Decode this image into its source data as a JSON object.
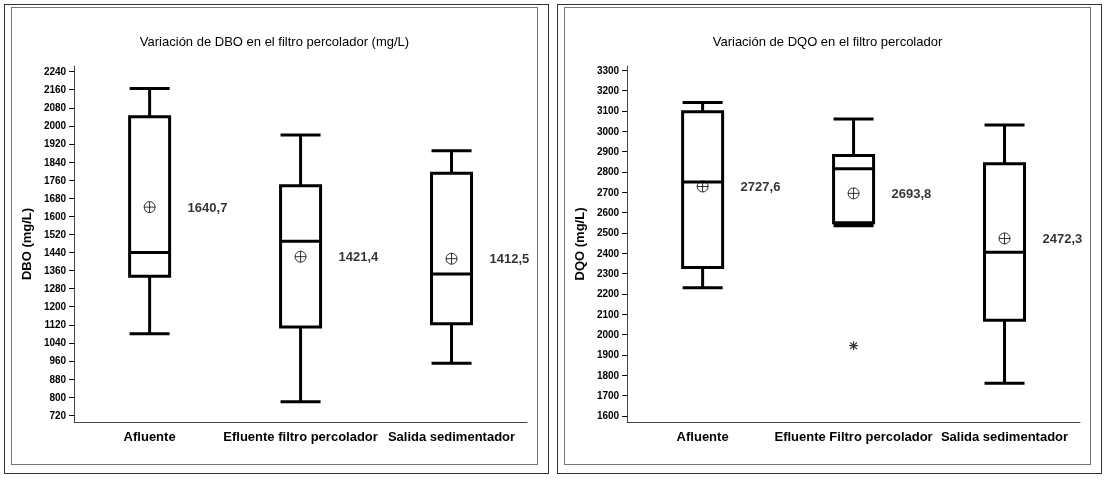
{
  "chart_data": [
    {
      "type": "box",
      "title": "Variación de DBO en el filtro percolador (mg/L)",
      "ylabel": "DBO (mg/L)",
      "categories": [
        "Afluente",
        "Efluente filtro percolador",
        "Salida sedimentador"
      ],
      "boxes": [
        {
          "low": 1080,
          "q1": 1335,
          "median": 1440,
          "q3": 2040,
          "high": 2165,
          "mean": 1640.7
        },
        {
          "low": 780,
          "q1": 1110,
          "median": 1490,
          "q3": 1735,
          "high": 1960,
          "mean": 1421.4
        },
        {
          "low": 950,
          "q1": 1125,
          "median": 1345,
          "q3": 1790,
          "high": 1890,
          "mean": 1412.5
        }
      ],
      "ylim": [
        690,
        2265
      ],
      "yticks": [
        720,
        800,
        880,
        960,
        1040,
        1120,
        1200,
        1280,
        1360,
        1440,
        1520,
        1600,
        1680,
        1760,
        1840,
        1920,
        2000,
        2080,
        2160,
        2240
      ],
      "grid": false,
      "value_labels": [
        "1640,7",
        "1421,4",
        "1412,5"
      ]
    },
    {
      "type": "box",
      "title": "Variación de DQO en el filtro percolador",
      "ylabel": "DQO (mg/L)",
      "categories": [
        "Afluente",
        "Efluente Filtro percolador",
        "Salida sedimentador"
      ],
      "boxes": [
        {
          "low": 2230,
          "q1": 2330,
          "median": 2750,
          "q3": 3095,
          "high": 3140,
          "mean": 2727.6
        },
        {
          "low": 2535,
          "q1": 2550,
          "median": 2815,
          "q3": 2880,
          "high": 3060,
          "mean": 2693.8,
          "outliers": [
            1945
          ]
        },
        {
          "low": 1760,
          "q1": 2070,
          "median": 2405,
          "q3": 2840,
          "high": 3030,
          "mean": 2472.3
        }
      ],
      "ylim": [
        1570,
        3320
      ],
      "yticks": [
        1600,
        1700,
        1800,
        1900,
        2000,
        2100,
        2200,
        2300,
        2400,
        2500,
        2600,
        2700,
        2800,
        2900,
        3000,
        3100,
        3200,
        3300
      ],
      "grid": false,
      "value_labels": [
        "2727,6",
        "2693,8",
        "2472,3"
      ]
    }
  ]
}
